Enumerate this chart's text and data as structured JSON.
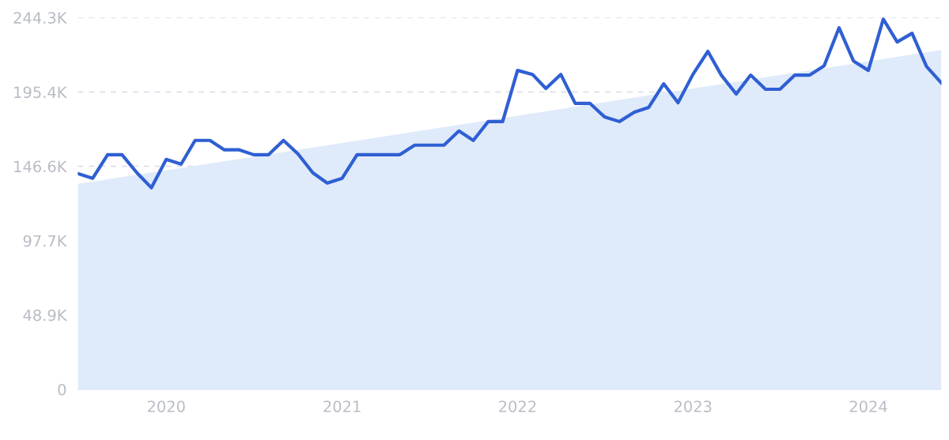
{
  "chart_data": {
    "type": "line",
    "x": [
      "2019-07",
      "2019-08",
      "2019-09",
      "2019-10",
      "2019-11",
      "2019-12",
      "2020-01",
      "2020-02",
      "2020-03",
      "2020-04",
      "2020-05",
      "2020-06",
      "2020-07",
      "2020-08",
      "2020-09",
      "2020-10",
      "2020-11",
      "2020-12",
      "2021-01",
      "2021-02",
      "2021-03",
      "2021-04",
      "2021-05",
      "2021-06",
      "2021-07",
      "2021-08",
      "2021-09",
      "2021-10",
      "2021-11",
      "2021-12",
      "2022-01",
      "2022-02",
      "2022-03",
      "2022-04",
      "2022-05",
      "2022-06",
      "2022-07",
      "2022-08",
      "2022-09",
      "2022-10",
      "2022-11",
      "2022-12",
      "2023-01",
      "2023-02",
      "2023-03",
      "2023-04",
      "2023-05",
      "2023-06",
      "2023-07",
      "2023-08",
      "2023-09",
      "2023-10",
      "2023-11",
      "2023-12",
      "2024-01",
      "2024-02",
      "2024-03",
      "2024-04",
      "2024-05",
      "2024-06"
    ],
    "series": [
      {
        "type": "area",
        "color": "#dfeafa",
        "x": [
          "2019-07",
          "2024-06"
        ],
        "values": [
          135000,
          223000
        ]
      },
      {
        "color": "#2f5fd3",
        "values": [
          141800,
          138700,
          154200,
          154200,
          142300,
          132500,
          151100,
          148000,
          163600,
          163600,
          157400,
          157400,
          154200,
          154200,
          163600,
          154800,
          142300,
          135600,
          138700,
          154200,
          154200,
          154200,
          154200,
          160500,
          160500,
          160500,
          169800,
          163600,
          176000,
          176000,
          209600,
          207000,
          197700,
          207000,
          187900,
          187900,
          179100,
          176000,
          182200,
          185300,
          200800,
          188400,
          207000,
          222100,
          206500,
          194100,
          206500,
          197200,
          197200,
          206500,
          206500,
          212700,
          237600,
          215800,
          209600,
          243300,
          228300,
          234000,
          212200,
          201300
        ]
      }
    ],
    "xlim": [
      "2019-07",
      "2024-06"
    ],
    "xticks": [
      {
        "value": "2020-01",
        "label": "2020"
      },
      {
        "value": "2021-01",
        "label": "2021"
      },
      {
        "value": "2022-01",
        "label": "2022"
      },
      {
        "value": "2023-01",
        "label": "2023"
      },
      {
        "value": "2024-01",
        "label": "2024"
      }
    ],
    "ylim": [
      0,
      244300
    ],
    "yticks": [
      {
        "value": 0,
        "label": "0"
      },
      {
        "value": 48900,
        "label": "48.9K"
      },
      {
        "value": 97700,
        "label": "97.7K"
      },
      {
        "value": 146600,
        "label": "146.6K"
      },
      {
        "value": 195400,
        "label": "195.4K"
      },
      {
        "value": 244300,
        "label": "244.3K"
      }
    ],
    "grid": "y"
  }
}
